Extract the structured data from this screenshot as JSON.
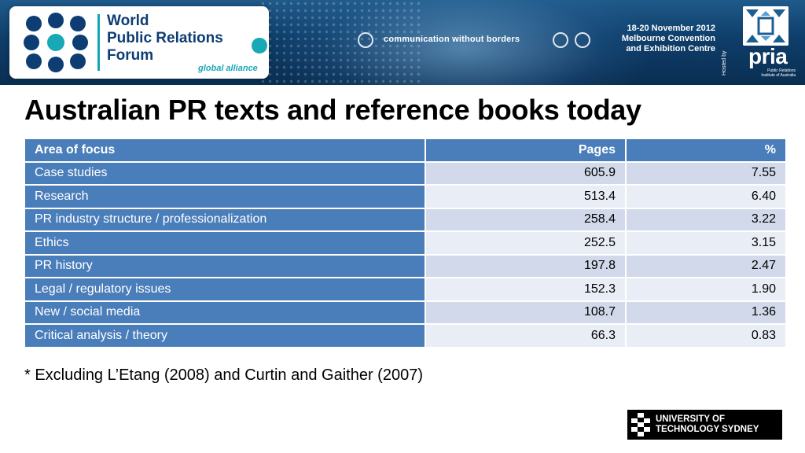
{
  "banner": {
    "logo_lines": [
      "World",
      "Public Relations",
      "Forum"
    ],
    "logo_tagline": "global alliance",
    "slogan": "communication without borders",
    "event_lines": [
      "18-20 November 2012",
      "Melbourne Convention",
      "and Exhibition Centre"
    ],
    "hosted_by": "Hosted by",
    "host_name": "pria",
    "host_subtitle_lines": [
      "Public Relations",
      "Institute of Australia"
    ]
  },
  "title": "Australian PR texts and reference books today",
  "table": {
    "headers": [
      "Area of focus",
      "Pages",
      "%"
    ],
    "rows": [
      {
        "area": "Case studies",
        "pages": "605.9",
        "percent": "7.55"
      },
      {
        "area": "Research",
        "pages": "513.4",
        "percent": "6.40"
      },
      {
        "area": "PR industry structure / professionalization",
        "pages": "258.4",
        "percent": "3.22"
      },
      {
        "area": "Ethics",
        "pages": "252.5",
        "percent": "3.15"
      },
      {
        "area": "PR history",
        "pages": "197.8",
        "percent": "2.47"
      },
      {
        "area": "Legal / regulatory issues",
        "pages": "152.3",
        "percent": "1.90"
      },
      {
        "area": "New / social media",
        "pages": "108.7",
        "percent": "1.36"
      },
      {
        "area": "Critical analysis / theory",
        "pages": "66.3",
        "percent": "0.83"
      }
    ]
  },
  "footnote": "* Excluding L’Etang (2008) and Curtin and Gaither (2007)",
  "uts_logo": {
    "lines": [
      "UNIVERSITY OF",
      "TECHNOLOGY SYDNEY"
    ]
  },
  "colors": {
    "table_header": "#4a7ebb",
    "row_dark": "#d1d9ea",
    "row_light": "#e9edf5",
    "banner_navy": "#0e3e6a",
    "accent_teal": "#19a8b5",
    "logo_navy": "#0d3d73"
  }
}
